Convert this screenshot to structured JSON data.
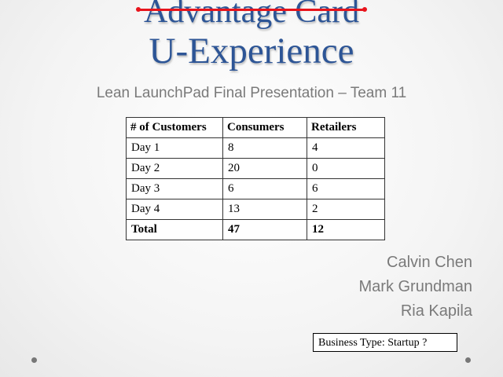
{
  "title_struck": "Advantage Card",
  "title": "U-Experience",
  "subtitle": "Lean LaunchPad Final Presentation – Team 11",
  "table": {
    "headers": [
      "# of Customers",
      "Consumers",
      "Retailers"
    ],
    "rows": [
      [
        "Day 1",
        "8",
        "4"
      ],
      [
        "Day 2",
        "20",
        "0"
      ],
      [
        "Day 3",
        "6",
        "6"
      ],
      [
        "Day 4",
        "13",
        "2"
      ]
    ],
    "total": [
      "Total",
      "47",
      "12"
    ]
  },
  "team": [
    "Calvin Chen",
    "Mark Grundman",
    "Ria Kapila"
  ],
  "business_type": "Business Type:  Startup ?",
  "colors": {
    "title": "#2d5596",
    "strike": "#e8141c"
  }
}
